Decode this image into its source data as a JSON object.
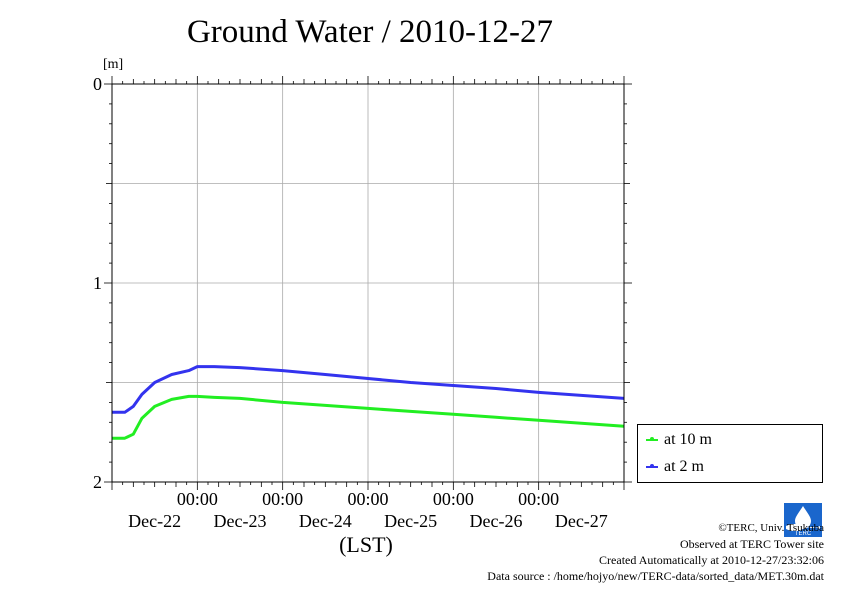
{
  "title": "Ground Water / 2010-12-27",
  "chart_data": {
    "type": "line",
    "title": "Ground Water / 2010-12-27",
    "ylabel": "[m]",
    "xlabel": "(LST)",
    "ylim": [
      0,
      2
    ],
    "y_inverted": true,
    "y_ticks": [
      "0",
      "1",
      "2"
    ],
    "x_tick_times": [
      "00:00",
      "00:00",
      "00:00",
      "00:00",
      "00:00"
    ],
    "x_dates": [
      "Dec-22",
      "Dec-23",
      "Dec-24",
      "Dec-25",
      "Dec-26",
      "Dec-27"
    ],
    "x_range_days": [
      0,
      6
    ],
    "grid": true,
    "legend_position": "bottom-right",
    "series": [
      {
        "name": "at 10 m",
        "color": "#22ee22",
        "x_days": [
          0,
          0.15,
          0.25,
          0.35,
          0.5,
          0.7,
          0.9,
          1.0,
          1.2,
          1.5,
          2.0,
          2.5,
          3.0,
          3.5,
          4.0,
          4.5,
          5.0,
          5.5,
          6.0
        ],
        "values": [
          1.78,
          1.78,
          1.76,
          1.68,
          1.62,
          1.585,
          1.57,
          1.57,
          1.575,
          1.58,
          1.6,
          1.615,
          1.63,
          1.645,
          1.66,
          1.675,
          1.69,
          1.705,
          1.72
        ]
      },
      {
        "name": "at 2 m",
        "color": "#3333ee",
        "x_days": [
          0,
          0.15,
          0.25,
          0.35,
          0.5,
          0.7,
          0.9,
          1.0,
          1.2,
          1.5,
          2.0,
          2.5,
          3.0,
          3.5,
          4.0,
          4.5,
          5.0,
          5.5,
          6.0
        ],
        "values": [
          1.65,
          1.65,
          1.62,
          1.56,
          1.5,
          1.46,
          1.44,
          1.42,
          1.42,
          1.425,
          1.44,
          1.46,
          1.48,
          1.5,
          1.515,
          1.53,
          1.55,
          1.565,
          1.58
        ]
      }
    ]
  },
  "credits": {
    "copyright": "©TERC, Univ. Tsukuba",
    "observed": "Observed at TERC Tower site",
    "created": "Created Automatically at 2010-12-27/23:32:06",
    "source": "Data source : /home/hojyo/new/TERC-data/sorted_data/MET.30m.dat",
    "logo_text": "TERC"
  },
  "colors": {
    "grid": "#aaaaaa",
    "axis": "#000000"
  }
}
